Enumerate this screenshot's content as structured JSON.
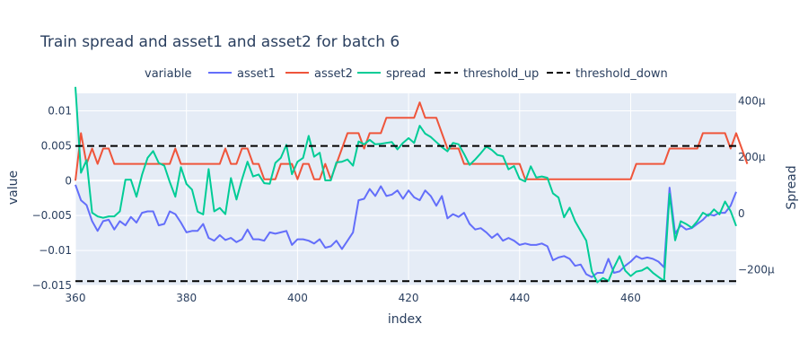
{
  "chart_data": {
    "type": "line",
    "title": "Train spread and asset1 and asset2 for batch 6",
    "xlabel": "index",
    "ylabel": "value",
    "y2label": "Spread",
    "xlim": [
      360,
      479
    ],
    "ylim": [
      -0.015,
      0.0125
    ],
    "y2lim": [
      -0.000255,
      0.000427
    ],
    "xticks": [
      360,
      380,
      400,
      420,
      440,
      460
    ],
    "yticks": [
      0.01,
      0.005,
      0,
      -0.005,
      -0.01,
      -0.015
    ],
    "ytick_labels": [
      "0.01",
      "0.005",
      "0",
      "−0.005",
      "−0.01",
      "−0.015"
    ],
    "y2ticks": [
      0.0004,
      0.0002,
      0,
      -0.0002
    ],
    "y2tick_labels": [
      "400μ",
      "200μ",
      "0",
      "−200μ"
    ],
    "legend_title": "variable",
    "legend_position": "top",
    "plot_background": "#e5ecf6",
    "grid": true,
    "series": [
      {
        "name": "asset1",
        "color": "#636efa",
        "axis": "y",
        "start_x": 360,
        "values": [
          -0.0006,
          -0.0028,
          -0.0035,
          -0.0058,
          -0.0072,
          -0.0058,
          -0.0056,
          -0.007,
          -0.0058,
          -0.0064,
          -0.0052,
          -0.006,
          -0.0046,
          -0.0044,
          -0.0044,
          -0.0064,
          -0.0062,
          -0.0044,
          -0.0048,
          -0.006,
          -0.0074,
          -0.0072,
          -0.0072,
          -0.0062,
          -0.0082,
          -0.0086,
          -0.0078,
          -0.0085,
          -0.0082,
          -0.0088,
          -0.0084,
          -0.007,
          -0.0084,
          -0.0084,
          -0.0086,
          -0.0074,
          -0.0076,
          -0.0074,
          -0.0072,
          -0.0092,
          -0.0084,
          -0.0084,
          -0.0086,
          -0.009,
          -0.0084,
          -0.0096,
          -0.0094,
          -0.0086,
          -0.0098,
          -0.0086,
          -0.0074,
          -0.0028,
          -0.0026,
          -0.0012,
          -0.0022,
          -0.0008,
          -0.0022,
          -0.002,
          -0.0014,
          -0.0026,
          -0.0014,
          -0.0024,
          -0.0028,
          -0.0014,
          -0.0022,
          -0.0036,
          -0.0022,
          -0.0054,
          -0.0048,
          -0.0052,
          -0.0046,
          -0.0062,
          -0.007,
          -0.0068,
          -0.0074,
          -0.0082,
          -0.0076,
          -0.0086,
          -0.0082,
          -0.0086,
          -0.0092,
          -0.009,
          -0.0092,
          -0.0092,
          -0.009,
          -0.0094,
          -0.0114,
          -0.011,
          -0.0108,
          -0.0112,
          -0.0122,
          -0.012,
          -0.0134,
          -0.0138,
          -0.0132,
          -0.0132,
          -0.0112,
          -0.0132,
          -0.013,
          -0.0122,
          -0.0116,
          -0.0108,
          -0.0112,
          -0.011,
          -0.0112,
          -0.0116,
          -0.0124,
          -0.001,
          -0.0076,
          -0.0064,
          -0.007,
          -0.0068,
          -0.0062,
          -0.0056,
          -0.0048,
          -0.005,
          -0.0046,
          -0.0046,
          -0.0036,
          -0.0016
        ]
      },
      {
        "name": "asset2",
        "color": "#ef553b",
        "axis": "y",
        "start_x": 360,
        "values": [
          0.0,
          0.0068,
          0.0024,
          0.0046,
          0.0024,
          0.0046,
          0.0046,
          0.0024,
          0.0024,
          0.0024,
          0.0024,
          0.0024,
          0.0024,
          0.0024,
          0.0024,
          0.0024,
          0.0024,
          0.0024,
          0.0046,
          0.0024,
          0.0024,
          0.0024,
          0.0024,
          0.0024,
          0.0024,
          0.0024,
          0.0024,
          0.0046,
          0.0024,
          0.0024,
          0.0046,
          0.0046,
          0.0024,
          0.0024,
          0.0002,
          0.0002,
          0.0002,
          0.0024,
          0.0024,
          0.0024,
          0.0002,
          0.0024,
          0.0024,
          0.0002,
          0.0002,
          0.0024,
          0.0002,
          0.0024,
          0.0046,
          0.0068,
          0.0068,
          0.0068,
          0.0046,
          0.0068,
          0.0068,
          0.0068,
          0.009,
          0.009,
          0.009,
          0.009,
          0.009,
          0.009,
          0.0112,
          0.009,
          0.009,
          0.009,
          0.0068,
          0.0046,
          0.0046,
          0.0046,
          0.0024,
          0.0024,
          0.0024,
          0.0024,
          0.0024,
          0.0024,
          0.0024,
          0.0024,
          0.0024,
          0.0024,
          0.0024,
          0.0002,
          0.0002,
          0.0002,
          0.0002,
          0.0002,
          0.0002,
          0.0002,
          0.0002,
          0.0002,
          0.0002,
          0.0002,
          0.0002,
          0.0002,
          0.0002,
          0.0002,
          0.0002,
          0.0002,
          0.0002,
          0.0002,
          0.0002,
          0.0024,
          0.0024,
          0.0024,
          0.0024,
          0.0024,
          0.0024,
          0.0046,
          0.0046,
          0.0046,
          0.0046,
          0.0046,
          0.0046,
          0.0068,
          0.0068,
          0.0068,
          0.0068,
          0.0068,
          0.0046,
          0.0068,
          0.0046,
          0.0024
        ]
      },
      {
        "name": "spread",
        "color": "#00cc96",
        "axis": "y2",
        "start_x": 360,
        "values": [
          0.00045,
          0.000145,
          0.00019,
          3e-06,
          -1e-05,
          -1.5e-05,
          -1e-05,
          -1e-05,
          8e-06,
          0.00012,
          0.00012,
          6e-05,
          0.000138,
          0.000198,
          0.000222,
          0.00018,
          0.00017,
          0.000112,
          6e-05,
          0.000165,
          0.000105,
          8.5e-05,
          7e-06,
          -3e-06,
          0.000158,
          8e-06,
          2e-05,
          -2e-06,
          0.000126,
          5e-05,
          0.000121,
          0.000184,
          0.000132,
          0.000139,
          0.000108,
          0.000106,
          0.00018,
          0.000198,
          0.000244,
          0.00014,
          0.000184,
          0.000198,
          0.000276,
          0.000202,
          0.000216,
          0.000118,
          0.000118,
          0.000182,
          0.000184,
          0.000192,
          0.00017,
          0.000256,
          0.000246,
          0.000262,
          0.000246,
          0.000248,
          0.000251,
          0.000254,
          0.000228,
          0.000251,
          0.000268,
          0.000251,
          0.000312,
          0.000284,
          0.000272,
          0.000254,
          0.000236,
          0.000221,
          0.000251,
          0.000246,
          0.000212,
          0.000173,
          0.000192,
          0.000214,
          0.000238,
          0.000226,
          0.000208,
          0.000204,
          0.000157,
          0.000169,
          0.000123,
          0.000114,
          0.000168,
          0.000128,
          0.000132,
          0.000127,
          7.2e-05,
          5.7e-05,
          -1.3e-05,
          2.1e-05,
          -2.7e-05,
          -6.2e-05,
          -9.6e-05,
          -0.000205,
          -0.000244,
          -0.000229,
          -0.000239,
          -0.000191,
          -0.000151,
          -0.000202,
          -0.000222,
          -0.000206,
          -0.000202,
          -0.000191,
          -0.00021,
          -0.000225,
          -0.000239,
          7e-05,
          -9.5e-05,
          -2.7e-05,
          -3.7e-05,
          -5e-05,
          -2.7e-05,
          3e-06,
          -8e-06,
          1.5e-05,
          -3e-06,
          4.3e-05,
          9e-06,
          -4.4e-05
        ]
      },
      {
        "name": "threshold_up",
        "color": "#000000",
        "dash": "dash",
        "axis": "y2",
        "constant": 0.00024
      },
      {
        "name": "threshold_down",
        "color": "#000000",
        "dash": "dash",
        "axis": "y2",
        "constant": -0.00024
      }
    ]
  }
}
